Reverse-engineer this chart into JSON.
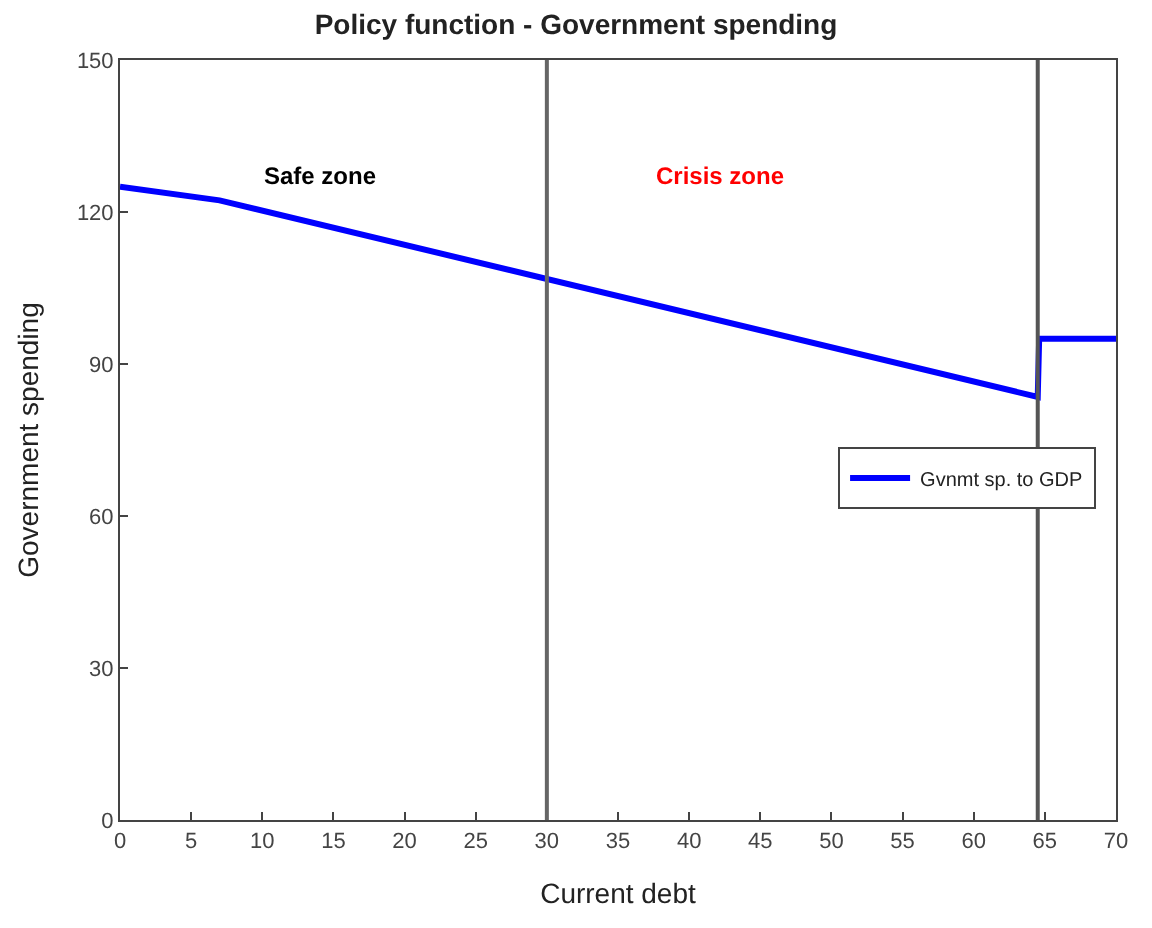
{
  "chart_data": {
    "type": "line",
    "title": "Policy function - Government spending",
    "xlabel": "Current debt",
    "ylabel": "Government spending",
    "series": [
      {
        "name": "Gvnmt sp. to GDP",
        "color": "#0000ff",
        "x": [
          0,
          7,
          64.5,
          64.6,
          70
        ],
        "values": [
          125,
          122.3,
          83.5,
          95,
          95
        ]
      }
    ],
    "xlim": [
      0,
      70
    ],
    "xticks": [
      0,
      5,
      10,
      15,
      20,
      25,
      30,
      35,
      40,
      45,
      50,
      55,
      60,
      65,
      70
    ],
    "ylim": [
      0,
      150
    ],
    "yticks": [
      0,
      30,
      60,
      90,
      120,
      150
    ],
    "ref_lines": [
      {
        "axis": "x",
        "value": 30,
        "color": "#666666"
      },
      {
        "axis": "x",
        "value": 64.5,
        "color": "#555555"
      }
    ],
    "annotations": [
      "Safe zone",
      "Crisis zone"
    ],
    "legend": "right",
    "marker": "none",
    "line_style": "solid"
  }
}
